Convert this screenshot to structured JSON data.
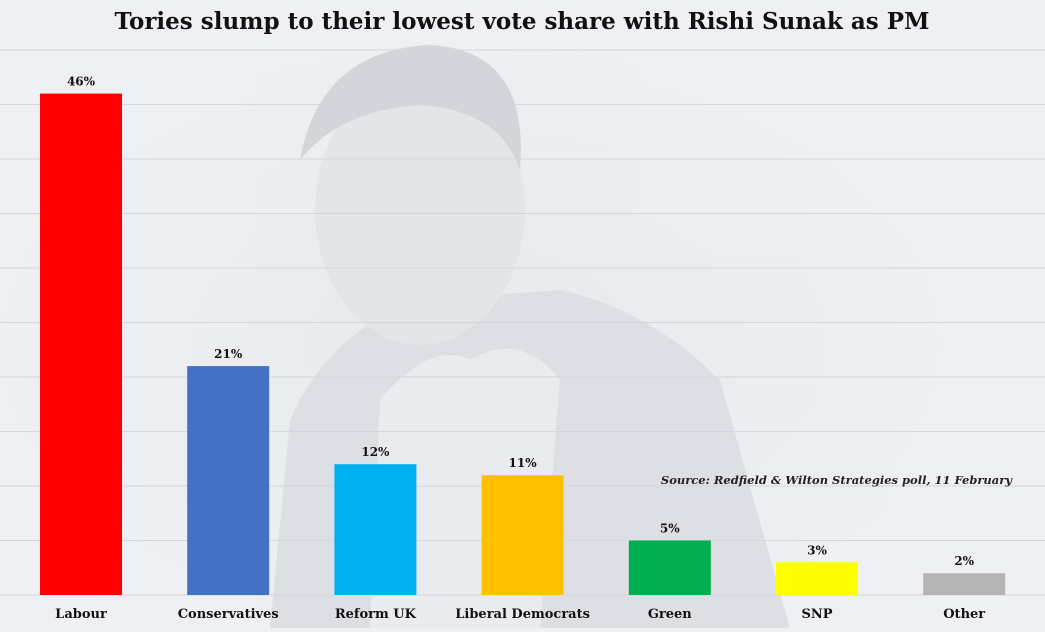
{
  "chart_data": {
    "type": "bar",
    "title": "Tories slump to their lowest vote share with Rishi Sunak as PM",
    "categories": [
      "Labour",
      "Conservatives",
      "Reform UK",
      "Liberal Democrats",
      "Green",
      "SNP",
      "Other"
    ],
    "values": [
      46,
      21,
      12,
      11,
      5,
      3,
      2
    ],
    "value_labels": [
      "46%",
      "21%",
      "12%",
      "11%",
      "5%",
      "3%",
      "2%"
    ],
    "colors": [
      "#fe0000",
      "#4372c4",
      "#00b0f0",
      "#ffc000",
      "#00b050",
      "#ffff00",
      "#b4b4b4"
    ],
    "ylim": [
      0,
      50
    ],
    "grid": true,
    "xlabel": "",
    "ylabel": "",
    "source": "Source: Redfield & Wilton Strategies poll, 11 February"
  }
}
